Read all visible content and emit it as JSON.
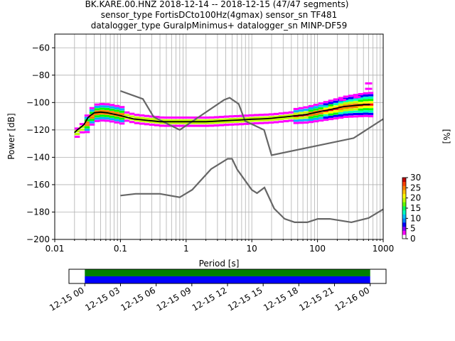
{
  "header": {
    "line1": "BK.KARE.00.HNZ   2018-12-14 -- 2018-12-15  (47/47 segments)",
    "line2": "sensor_type FortisDCto100Hz(4gmax) sensor_sn TF481",
    "line3": "datalogger_type GuralpMinimus+ datalogger_sn MINP-DF59"
  },
  "chart_data": [
    {
      "type": "heatmap",
      "xlabel": "Period [s]",
      "ylabel": "Power [dB]",
      "xscale": "log",
      "xlim": [
        0.01,
        1000
      ],
      "ylim": [
        -200,
        -50
      ],
      "grid": true,
      "x_ticks": [
        {
          "value": 0.01,
          "label": "0.01"
        },
        {
          "value": 0.1,
          "label": "0.1"
        },
        {
          "value": 1,
          "label": "1"
        },
        {
          "value": 10,
          "label": "10"
        },
        {
          "value": 100,
          "label": "100"
        },
        {
          "value": 1000,
          "label": "1000"
        }
      ],
      "y_ticks": [
        {
          "value": -60,
          "label": "−60"
        },
        {
          "value": -80,
          "label": "−80"
        },
        {
          "value": -100,
          "label": "−100"
        },
        {
          "value": -120,
          "label": "−120"
        },
        {
          "value": -140,
          "label": "−140"
        },
        {
          "value": -160,
          "label": "−160"
        },
        {
          "value": -180,
          "label": "−180"
        },
        {
          "value": -200,
          "label": "−200"
        }
      ],
      "noise_model_high": {
        "x": [
          0.1,
          0.22,
          0.32,
          0.8,
          3.8,
          4.6,
          6.3,
          7.9,
          15.4,
          20,
          354.8,
          1000
        ],
        "y": [
          -91.5,
          -97.4,
          -110.5,
          -120,
          -98,
          -96.5,
          -101,
          -113.5,
          -120,
          -138.5,
          -126,
          -112
        ]
      },
      "noise_model_low": {
        "x": [
          0.1,
          0.17,
          0.4,
          0.8,
          1.24,
          2.4,
          4.3,
          5.0,
          6.0,
          10.0,
          12.0,
          15.6,
          21.9,
          31.6,
          45.0,
          70.0,
          101.0,
          154.0,
          328.0,
          600.0,
          1000.0
        ],
        "y": [
          -168,
          -166.7,
          -166.7,
          -169.2,
          -163.7,
          -148.6,
          -141.1,
          -141.1,
          -149.0,
          -163.8,
          -166.2,
          -162.1,
          -177.5,
          -185.0,
          -187.5,
          -187.5,
          -185.0,
          -185.0,
          -187.5,
          -184.4,
          -178.0
        ]
      },
      "mean_curve": {
        "x": [
          0.02,
          0.022,
          0.025,
          0.028,
          0.032,
          0.036,
          0.04,
          0.05,
          0.063,
          0.08,
          0.1,
          0.13,
          0.16,
          0.2,
          0.25,
          0.32,
          0.4,
          0.5,
          0.63,
          0.8,
          1,
          1.3,
          1.6,
          2,
          2.5,
          3.2,
          4,
          5,
          6.3,
          8,
          10,
          13,
          16,
          20,
          25,
          32,
          40,
          50,
          63,
          80,
          100,
          126,
          160,
          200,
          250,
          320,
          400,
          500,
          630
        ],
        "y": [
          -122,
          -120,
          -118,
          -116,
          -111,
          -109,
          -107.5,
          -107,
          -107.5,
          -108.5,
          -109.5,
          -111,
          -112,
          -112.5,
          -113,
          -113.5,
          -114,
          -114,
          -114,
          -114,
          -114,
          -114,
          -114,
          -114,
          -113.8,
          -113.5,
          -113.2,
          -113,
          -112.8,
          -112.5,
          -112.2,
          -112,
          -111.8,
          -111.5,
          -111,
          -110.5,
          -110,
          -109.5,
          -109,
          -108,
          -107,
          -106,
          -105,
          -104,
          -103,
          -102.5,
          -102,
          -101.5,
          -101.5
        ]
      },
      "colorbar": {
        "label": "[%]",
        "range": [
          0,
          30
        ],
        "ticks": [
          {
            "value": 0,
            "label": "0"
          },
          {
            "value": 5,
            "label": "5"
          },
          {
            "value": 10,
            "label": "10"
          },
          {
            "value": 15,
            "label": "15"
          },
          {
            "value": 20,
            "label": "20"
          },
          {
            "value": 25,
            "label": "25"
          },
          {
            "value": 30,
            "label": "30"
          }
        ]
      }
    },
    {
      "type": "bar",
      "xlim": [
        0,
        1
      ],
      "series": [
        {
          "color": "#008000",
          "start": 0.05,
          "end": 0.95
        },
        {
          "color": "#0000ff",
          "start": 0.05,
          "end": 0.95
        }
      ],
      "x_ticks": [
        {
          "value": 0.0,
          "label": "12-15 00"
        },
        {
          "value": 0.125,
          "label": "12-15 03"
        },
        {
          "value": 0.25,
          "label": "12-15 06"
        },
        {
          "value": 0.375,
          "label": "12-15 09"
        },
        {
          "value": 0.5,
          "label": "12-15 12"
        },
        {
          "value": 0.625,
          "label": "12-15 15"
        },
        {
          "value": 0.75,
          "label": "12-15 18"
        },
        {
          "value": 0.875,
          "label": "12-15 21"
        },
        {
          "value": 1.0,
          "label": "12-16 00"
        }
      ]
    }
  ]
}
